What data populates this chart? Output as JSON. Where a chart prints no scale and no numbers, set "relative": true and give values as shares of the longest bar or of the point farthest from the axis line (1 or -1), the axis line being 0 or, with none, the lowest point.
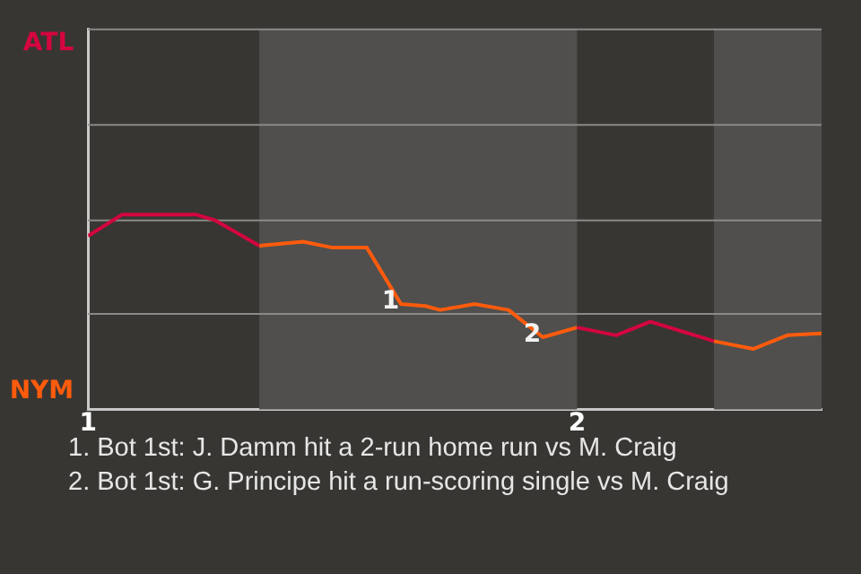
{
  "chart_data": {
    "type": "line",
    "relative": true,
    "xlim": [
      1,
      2.5
    ],
    "xticks": [
      1,
      2
    ],
    "series": [
      {
        "color": "#d4063f",
        "x": [
          1,
          1.07,
          1.22,
          1.26,
          1.35,
          1.7,
          2.0,
          2.08,
          2.15,
          2.28
        ],
        "values": [
          0.89,
          1,
          1,
          0.97,
          0.84,
          null,
          0.42,
          0.38,
          0.45,
          0.35
        ]
      },
      {
        "color": "#ff5b0c",
        "x": [
          1.35,
          1.44,
          1.5,
          1.57,
          1.64,
          1.69,
          1.72,
          1.79,
          1.86,
          1.93,
          2.0,
          2.1,
          2.28,
          2.36,
          2.43,
          2.5
        ],
        "values": [
          0.84,
          0.86,
          0.83,
          0.83,
          0.54,
          0.53,
          0.51,
          0.54,
          0.51,
          0.37,
          0.42,
          null,
          0.35,
          0.31,
          0.38,
          0.39
        ]
      }
    ],
    "bands": [
      {
        "axis": "x",
        "from": 1.35,
        "to": 2.0,
        "color": "#504f4d"
      },
      {
        "axis": "x",
        "from": 2.28,
        "to": 2.5,
        "color": "#504f4d"
      }
    ],
    "annotations": [
      "ATL",
      "NYM",
      {
        "text": "1",
        "x": 1.64,
        "y": 0.54
      },
      {
        "text": "2",
        "x": 1.93,
        "y": 0.37
      },
      "1. Bot 1st: J. Damm hit a 2-run home run vs M. Craig",
      "2. Bot 1st: G. Principe hit a run-scoring single vs M. Craig"
    ],
    "ref_lines": [
      {
        "axis": "y",
        "value": 0.49,
        "color": "#8a8a88"
      },
      {
        "axis": "y",
        "value": 0.97,
        "color": "#8a8a88"
      },
      {
        "axis": "y",
        "value": 1.46,
        "color": "#8a8a88"
      },
      {
        "axis": "y",
        "value": 1.95,
        "color": "#8a8a88"
      }
    ],
    "marker": "none",
    "line_style": "solid",
    "legend": false
  }
}
